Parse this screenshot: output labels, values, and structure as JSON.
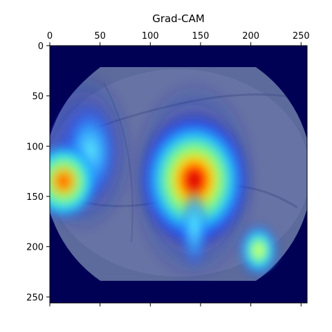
{
  "figure": {
    "title": "Grad-CAM",
    "x_ticks": [
      "0",
      "50",
      "100",
      "150",
      "200",
      "250"
    ],
    "y_ticks": [
      "0",
      "50",
      "100",
      "150",
      "200",
      "250"
    ],
    "x_tick_values": [
      0,
      50,
      100,
      150,
      200,
      250
    ],
    "y_tick_values": [
      0,
      50,
      100,
      150,
      200,
      250
    ],
    "x_range": [
      0,
      256
    ],
    "y_range": [
      0,
      256
    ],
    "image_description_colormap": "jet",
    "background_color": "#000055"
  }
}
